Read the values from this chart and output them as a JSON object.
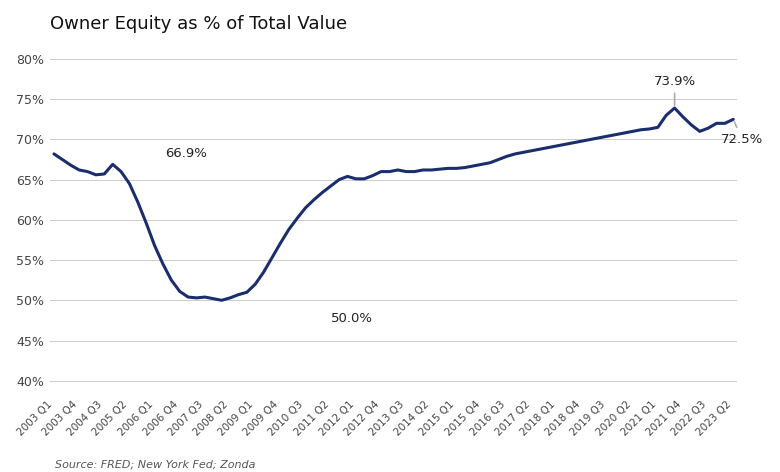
{
  "title": "Owner Equity as % of Total Value",
  "source": "Source: FRED; New York Fed; Zonda",
  "line_color": "#1a2e6e",
  "background_color": "#ffffff",
  "ylim": [
    0.38,
    0.82
  ],
  "yticks": [
    0.4,
    0.45,
    0.5,
    0.55,
    0.6,
    0.65,
    0.7,
    0.75,
    0.8
  ],
  "x_labels": [
    "2003 Q1",
    "2003 Q4",
    "2004 Q3",
    "2005 Q2",
    "2006 Q1",
    "2006 Q4",
    "2007 Q3",
    "2008 Q2",
    "2009 Q1",
    "2009 Q4",
    "2010 Q3",
    "2011 Q2",
    "2012 Q1",
    "2012 Q4",
    "2013 Q3",
    "2014 Q2",
    "2015 Q1",
    "2015 Q4",
    "2016 Q3",
    "2017 Q2",
    "2018 Q1",
    "2018 Q4",
    "2019 Q3",
    "2020 Q2",
    "2021 Q1",
    "2021 Q4",
    "2022 Q3",
    "2023 Q2"
  ],
  "x_tick_indices": [
    0,
    3,
    6,
    9,
    12,
    15,
    18,
    21,
    24,
    27,
    30,
    33,
    36,
    39,
    42,
    45,
    48,
    51,
    54,
    57,
    60,
    63,
    66,
    69,
    72,
    75,
    78,
    81
  ],
  "values": [
    0.682,
    0.675,
    0.668,
    0.662,
    0.66,
    0.656,
    0.657,
    0.669,
    0.66,
    0.645,
    0.622,
    0.596,
    0.568,
    0.545,
    0.525,
    0.511,
    0.504,
    0.503,
    0.504,
    0.502,
    0.5,
    0.503,
    0.507,
    0.51,
    0.52,
    0.535,
    0.553,
    0.571,
    0.588,
    0.602,
    0.615,
    0.625,
    0.634,
    0.642,
    0.65,
    0.654,
    0.651,
    0.651,
    0.655,
    0.66,
    0.66,
    0.662,
    0.66,
    0.66,
    0.662,
    0.662,
    0.663,
    0.664,
    0.664,
    0.665,
    0.667,
    0.669,
    0.671,
    0.675,
    0.679,
    0.682,
    0.684,
    0.686,
    0.688,
    0.69,
    0.692,
    0.694,
    0.696,
    0.698,
    0.7,
    0.702,
    0.704,
    0.706,
    0.708,
    0.71,
    0.712,
    0.713,
    0.715,
    0.73,
    0.739,
    0.728,
    0.718,
    0.71,
    0.714,
    0.72,
    0.72,
    0.725
  ]
}
